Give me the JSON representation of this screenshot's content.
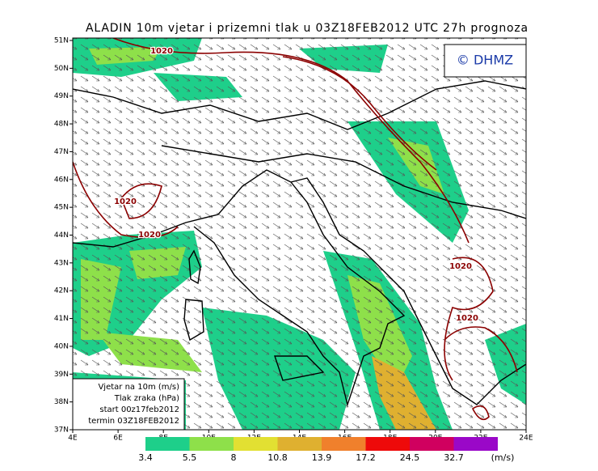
{
  "map": {
    "title": "ALADIN 10m vjetar i prizemni tlak u 03Z18FEB2012 UTC 27h prognoza",
    "copyright": "© DHMZ",
    "lat_ticks": [
      "51N",
      "50N",
      "49N",
      "48N",
      "47N",
      "46N",
      "45N",
      "44N",
      "43N",
      "42N",
      "41N",
      "40N",
      "39N",
      "38N",
      "37N"
    ],
    "lon_ticks": [
      "4E",
      "6E",
      "8E",
      "10E",
      "12E",
      "14E",
      "16E",
      "18E",
      "20E",
      "22E",
      "24E"
    ],
    "isobar_labels": [
      "1020",
      "1020",
      "1020",
      "1020",
      "1020"
    ],
    "legend": [
      "Vjetar na 10m (m/s)",
      "Tlak zraka (hPa)",
      "start 00z17feb2012",
      "termin 03Z18FEB2012"
    ],
    "colorbar": {
      "values": [
        3.4,
        5.5,
        8,
        10.8,
        13.9,
        17.2,
        24.5,
        32.7
      ],
      "colors": [
        "#1ecf8a",
        "#8ee04a",
        "#e2e032",
        "#dfb030",
        "#f0802c",
        "#ee0a0a",
        "#d0005f",
        "#9a08c8"
      ],
      "unit": "(m/s)"
    }
  }
}
